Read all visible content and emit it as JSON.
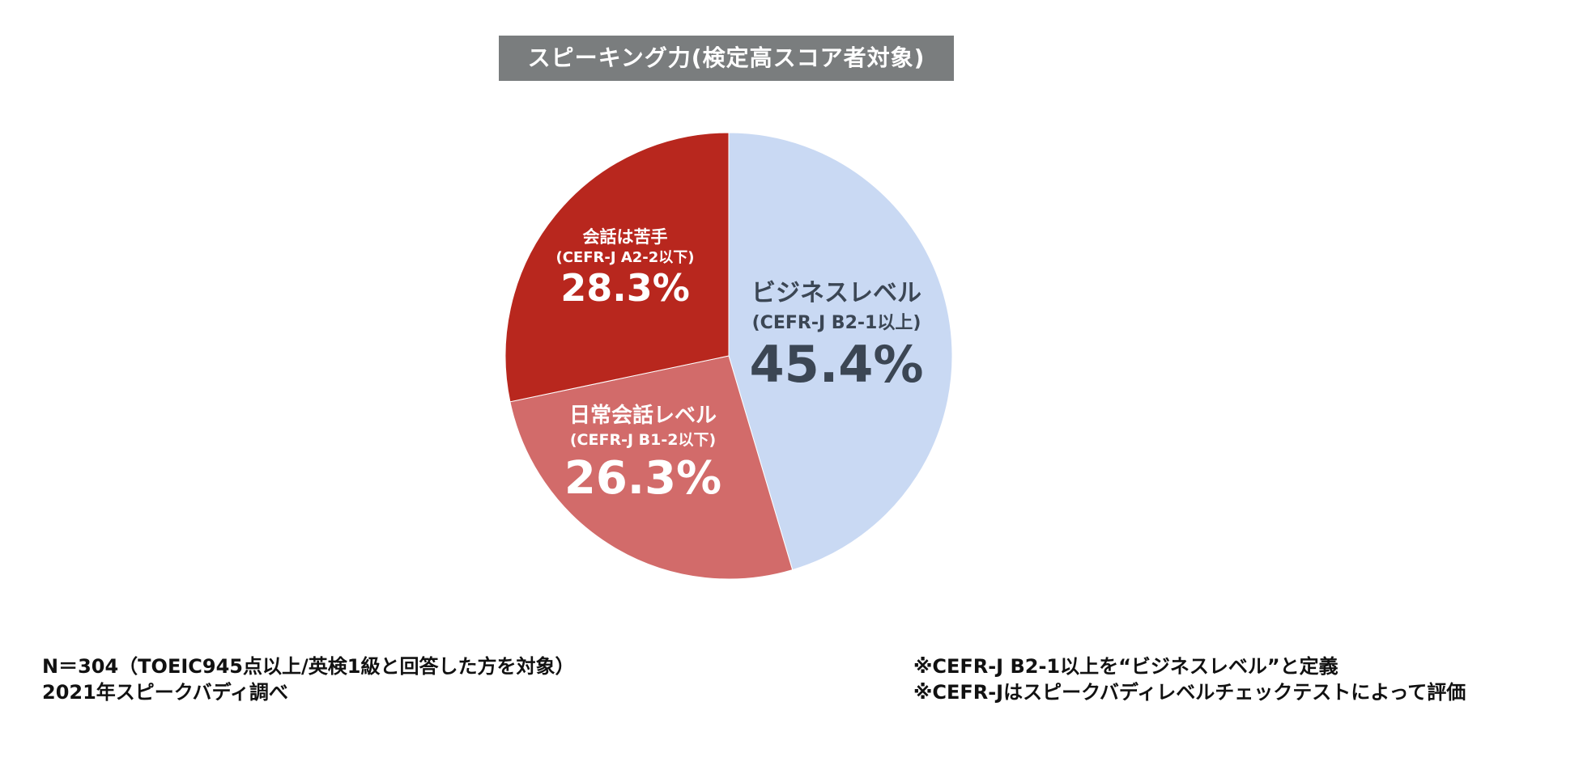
{
  "title": "スピーキング力(検定高スコア者対象)",
  "chart_data": {
    "type": "pie",
    "title": "スピーキング力(検定高スコア者対象)",
    "start_angle_deg": 0,
    "direction": "clockwise",
    "slices": [
      {
        "name": "ビジネスレベル",
        "sublabel": "(CEFR-J B2-1以上)",
        "value": 45.4,
        "label": "45.4%",
        "color": "#c9d9f3",
        "text_color": "#3b4654"
      },
      {
        "name": "日常会話レベル",
        "sublabel": "(CEFR-J B1-2以下)",
        "value": 26.3,
        "label": "26.3%",
        "color": "#d26b6a",
        "text_color": "#ffffff"
      },
      {
        "name": "会話は苦手",
        "sublabel": "(CEFR-J A2-2以下)",
        "value": 28.3,
        "label": "28.3%",
        "color": "#b8271e",
        "text_color": "#ffffff"
      }
    ]
  },
  "notes": {
    "left": [
      "N＝304（TOEIC945点以上/英検1級と回答した方を対象）",
      "2021年スピークバディ調べ"
    ],
    "right": [
      "※CEFR-J B2-1以上を“ビジネスレベル”と定義",
      "※CEFR-Jはスピークバディレベルチェックテストによって評価"
    ]
  }
}
